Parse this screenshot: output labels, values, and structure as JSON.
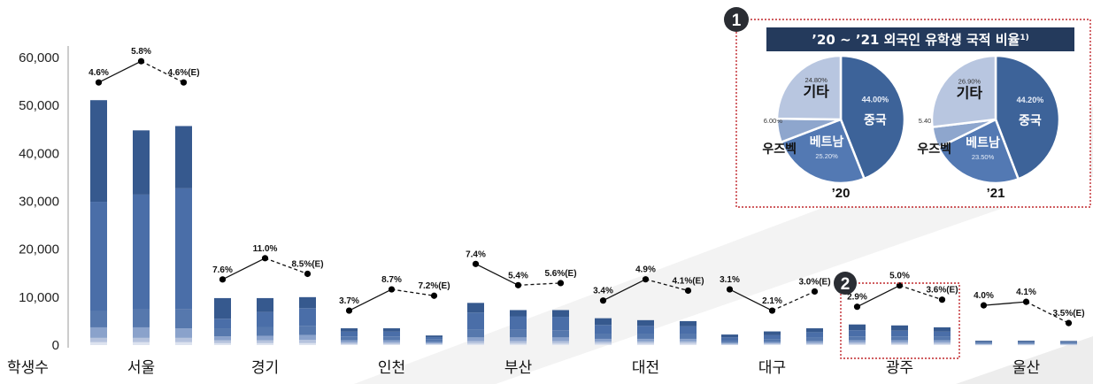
{
  "chart_data": {
    "type": "bar",
    "ylabel": "학생수",
    "ylim": [
      0,
      65000
    ],
    "yticks": [
      "60,000",
      "50,000",
      "40,000",
      "30,000",
      "20,000",
      "10,000",
      "0"
    ],
    "ytick_values": [
      60000,
      50000,
      40000,
      30000,
      20000,
      10000,
      0
    ],
    "categories": [
      "서울",
      "경기",
      "인천",
      "부산",
      "대전",
      "대구",
      "광주",
      "울산"
    ],
    "bar_colors": [
      "#dde3ef",
      "#b6c3dd",
      "#8aa2cb",
      "#5678ad",
      "#4a6ea8",
      "#36598e"
    ],
    "groups": [
      {
        "name": "서울",
        "bars": [
          [
            600,
            900,
            2200,
            3400,
            22800,
            21200
          ],
          [
            600,
            900,
            2200,
            3700,
            24000,
            13400
          ],
          [
            600,
            900,
            2000,
            4000,
            25200,
            13000
          ]
        ],
        "pct": [
          "4.6%",
          "5.8%",
          "4.6%(E)"
        ],
        "pct_values": [
          4.6,
          5.8,
          4.6
        ]
      },
      {
        "name": "경기",
        "bars": [
          [
            400,
            600,
            800,
            1600,
            2100,
            4300
          ],
          [
            400,
            600,
            900,
            1800,
            3200,
            2900
          ],
          [
            400,
            700,
            1000,
            1900,
            3700,
            2300
          ]
        ],
        "pct": [
          "7.6%",
          "11.0%",
          "8.5%(E)"
        ],
        "pct_values": [
          7.6,
          11.0,
          8.5
        ]
      },
      {
        "name": "인천",
        "bars": [
          [
            200,
            300,
            500,
            800,
            1000,
            700
          ],
          [
            200,
            300,
            500,
            800,
            1000,
            700
          ],
          [
            150,
            200,
            300,
            500,
            500,
            350
          ]
        ],
        "pct": [
          "3.7%",
          "8.7%",
          "7.2%(E)"
        ],
        "pct_values": [
          3.7,
          8.7,
          7.2
        ]
      },
      {
        "name": "부산",
        "bars": [
          [
            300,
            500,
            800,
            1600,
            3600,
            2000
          ],
          [
            300,
            500,
            800,
            1600,
            2800,
            1300
          ],
          [
            300,
            500,
            800,
            1500,
            2800,
            1400
          ]
        ],
        "pct": [
          "7.4%",
          "5.4%",
          "5.6%(E)"
        ],
        "pct_values": [
          7.4,
          5.4,
          5.6
        ]
      },
      {
        "name": "대전",
        "bars": [
          [
            300,
            400,
            600,
            1100,
            1800,
            1400
          ],
          [
            300,
            400,
            600,
            1100,
            1600,
            1200
          ],
          [
            300,
            400,
            600,
            1100,
            1500,
            1100
          ]
        ],
        "pct": [
          "3.4%",
          "4.9%",
          "4.1%(E)"
        ],
        "pct_values": [
          3.4,
          4.9,
          4.1
        ]
      },
      {
        "name": "대구",
        "bars": [
          [
            100,
            150,
            250,
            400,
            700,
            600
          ],
          [
            150,
            200,
            300,
            500,
            900,
            800
          ],
          [
            150,
            250,
            400,
            700,
            1200,
            800
          ]
        ],
        "pct": [
          "3.1%",
          "2.1%",
          "3.0%(E)"
        ],
        "pct_values": [
          3.1,
          2.1,
          3.0
        ]
      },
      {
        "name": "광주",
        "bars": [
          [
            200,
            300,
            500,
            800,
            1300,
            1200
          ],
          [
            200,
            300,
            500,
            800,
            1200,
            1100
          ],
          [
            200,
            300,
            500,
            700,
            1100,
            900
          ]
        ],
        "pct": [
          "2.9%",
          "5.0%",
          "3.6%(E)"
        ],
        "pct_values": [
          2.9,
          5.0,
          3.6
        ]
      },
      {
        "name": "울산",
        "bars": [
          [
            50,
            100,
            150,
            200,
            200,
            200
          ],
          [
            50,
            100,
            150,
            200,
            200,
            200
          ],
          [
            50,
            100,
            150,
            200,
            200,
            150
          ]
        ],
        "pct": [
          "4.0%",
          "4.1%",
          "3.5%(E)"
        ],
        "pct_values": [
          4.0,
          4.1,
          3.5
        ]
      }
    ],
    "inset": {
      "badge": "1",
      "title": "’20 ~ ’21 외국인 유학생 국적 비율",
      "title_footnote": "1)",
      "border_color": "#c0282d",
      "title_bg": "#243a5c",
      "pies": [
        {
          "year": "’20",
          "slices": [
            {
              "name": "중국",
              "pct": "44.00%",
              "value": 44.0,
              "color": "#3d6399"
            },
            {
              "name": "베트남",
              "pct": "25.20%",
              "value": 25.2,
              "color": "#5379b3"
            },
            {
              "name": "우즈벡",
              "pct": "6.00%",
              "value": 6.0,
              "color": "#8ea6cd"
            },
            {
              "name": "기타",
              "pct": "24.80%",
              "value": 24.8,
              "color": "#b8c6e0"
            }
          ]
        },
        {
          "year": "’21",
          "slices": [
            {
              "name": "중국",
              "pct": "44.20%",
              "value": 44.2,
              "color": "#3d6399"
            },
            {
              "name": "베트남",
              "pct": "23.50%",
              "value": 23.5,
              "color": "#5379b3"
            },
            {
              "name": "우즈벡",
              "pct": "5.40%",
              "value": 5.4,
              "color": "#8ea6cd"
            },
            {
              "name": "기타",
              "pct": "26.90%",
              "value": 26.9,
              "color": "#b8c6e0"
            }
          ]
        }
      ]
    },
    "highlight": {
      "badge": "2",
      "category": "광주",
      "border_color": "#c0282d"
    }
  }
}
